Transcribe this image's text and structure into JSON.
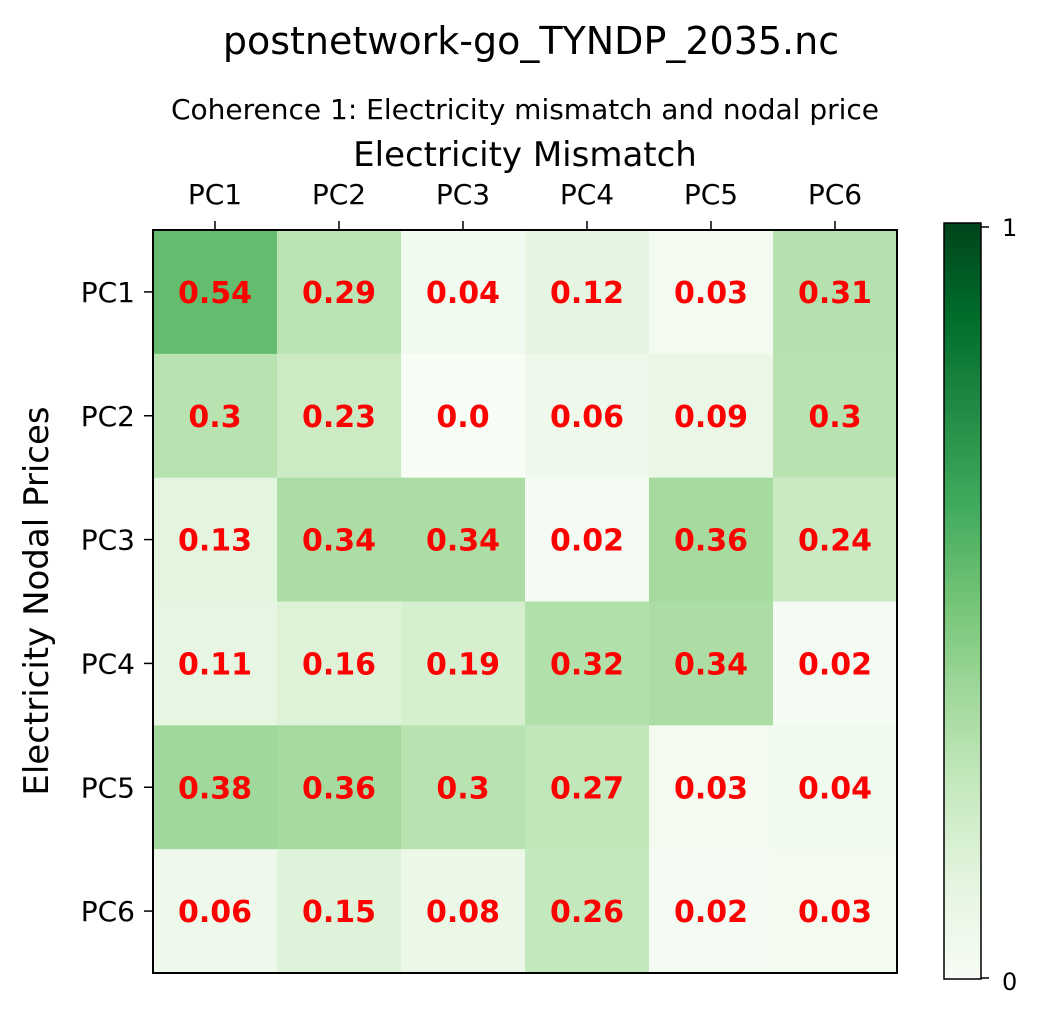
{
  "chart_data": {
    "type": "heatmap",
    "suptitle": "postnetwork-go_TYNDP_2035.nc",
    "title": "Coherence 1: Electricity mismatch and nodal price",
    "xlabel": "Electricity Mismatch",
    "ylabel": "Electricity Nodal Prices",
    "x_categories": [
      "PC1",
      "PC2",
      "PC3",
      "PC4",
      "PC5",
      "PC6"
    ],
    "y_categories": [
      "PC1",
      "PC2",
      "PC3",
      "PC4",
      "PC5",
      "PC6"
    ],
    "values": [
      [
        0.54,
        0.29,
        0.04,
        0.12,
        0.03,
        0.31
      ],
      [
        0.3,
        0.23,
        0.0,
        0.06,
        0.09,
        0.3
      ],
      [
        0.13,
        0.34,
        0.34,
        0.02,
        0.36,
        0.24
      ],
      [
        0.11,
        0.16,
        0.19,
        0.32,
        0.34,
        0.02
      ],
      [
        0.38,
        0.36,
        0.3,
        0.27,
        0.03,
        0.04
      ],
      [
        0.06,
        0.15,
        0.08,
        0.26,
        0.02,
        0.03
      ]
    ],
    "value_labels": [
      [
        "0.54",
        "0.29",
        "0.04",
        "0.12",
        "0.03",
        "0.31"
      ],
      [
        "0.3",
        "0.23",
        "0.0",
        "0.06",
        "0.09",
        "0.3"
      ],
      [
        "0.13",
        "0.34",
        "0.34",
        "0.02",
        "0.36",
        "0.24"
      ],
      [
        "0.11",
        "0.16",
        "0.19",
        "0.32",
        "0.34",
        "0.02"
      ],
      [
        "0.38",
        "0.36",
        "0.3",
        "0.27",
        "0.03",
        "0.04"
      ],
      [
        "0.06",
        "0.15",
        "0.08",
        "0.26",
        "0.02",
        "0.03"
      ]
    ],
    "colorscale": "Greens",
    "vmin": 0,
    "vmax": 1,
    "colorbar_ticks": [
      "0",
      "1"
    ],
    "value_label_color": "#ff0000"
  }
}
